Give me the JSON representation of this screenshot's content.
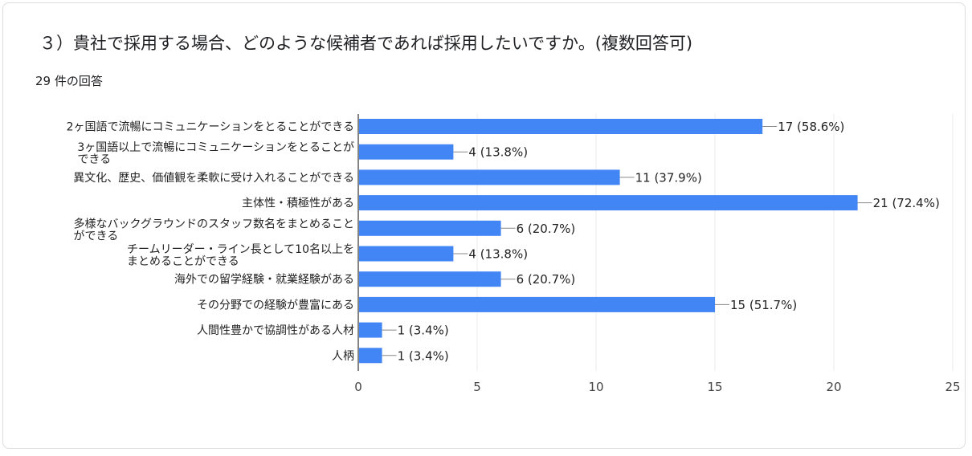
{
  "question": {
    "title": "３）貴社で採用する場合、どのような候補者であれば採用したいですか。(複数回答可)",
    "response_count": "29 件の回答"
  },
  "colors": {
    "bar": "#4285f4",
    "grid": "#ebebeb",
    "axis": "#333333",
    "text": "#222222"
  },
  "chart_data": {
    "type": "bar",
    "orientation": "horizontal",
    "categories": [
      [
        "2ヶ国語で流暢にコミュニケーションをとることができる"
      ],
      [
        "3ヶ国語以上で流暢にコミュニケーションをとることが",
        "できる"
      ],
      [
        "異文化、歴史、価値観を柔軟に受け入れることができる"
      ],
      [
        "主体性・積極性がある"
      ],
      [
        "多様なバックグラウンドのスタッフ数名をまとめること",
        "ができる"
      ],
      [
        "チームリーダー・ライン長として10名以上を",
        "まとめることができる"
      ],
      [
        "海外での留学経験・就業経験がある"
      ],
      [
        "その分野での経験が豊富にある"
      ],
      [
        "人間性豊かで協調性がある人材"
      ],
      [
        "人柄"
      ]
    ],
    "values": [
      17,
      4,
      11,
      21,
      6,
      4,
      6,
      15,
      1,
      1
    ],
    "data_labels": [
      "17 (58.6%)",
      "4 (13.8%)",
      "11 (37.9%)",
      "21 (72.4%)",
      "6 (20.7%)",
      "4 (13.8%)",
      "6 (20.7%)",
      "15 (51.7%)",
      "1 (3.4%)",
      "1 (3.4%)"
    ],
    "xlim": [
      0,
      25
    ],
    "xticks": [
      0,
      5,
      10,
      15,
      20,
      25
    ],
    "grid": true
  }
}
